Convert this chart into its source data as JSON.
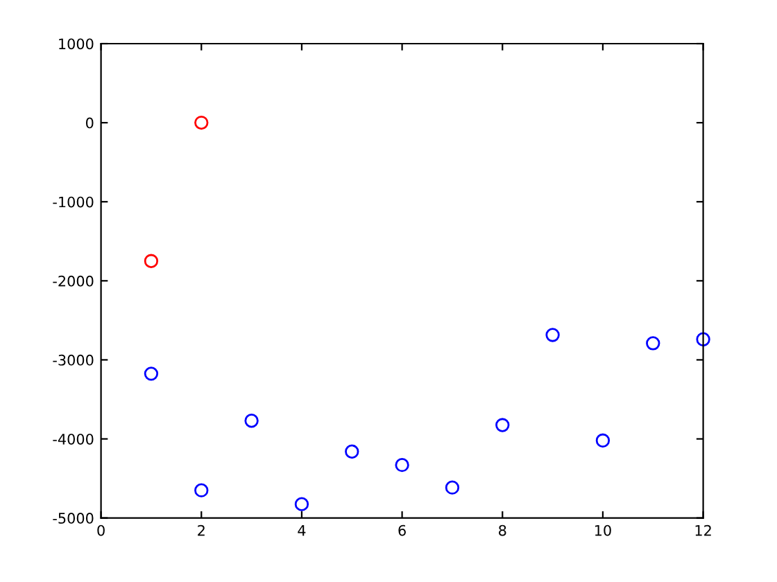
{
  "chart_data": {
    "type": "scatter",
    "marker": "circle",
    "grid": false,
    "series": [
      {
        "color": "#ff0000",
        "x": [
          1,
          2
        ],
        "values": [
          -1750,
          0
        ]
      },
      {
        "color": "#0000ff",
        "x": [
          1,
          2,
          3,
          4,
          5,
          6,
          7,
          8,
          9,
          10,
          11,
          12
        ],
        "values": [
          -3175,
          -4650,
          -3770,
          -4825,
          -4160,
          -4330,
          -4615,
          -3825,
          -2685,
          -4020,
          -2790,
          -2740
        ]
      }
    ],
    "xlim": [
      0,
      12
    ],
    "xticks": [
      0,
      2,
      4,
      6,
      8,
      10,
      12
    ],
    "ylim": [
      -5000,
      1000
    ],
    "yticks": [
      -5000,
      -4000,
      -3000,
      -2000,
      -1000,
      0,
      1000
    ]
  }
}
